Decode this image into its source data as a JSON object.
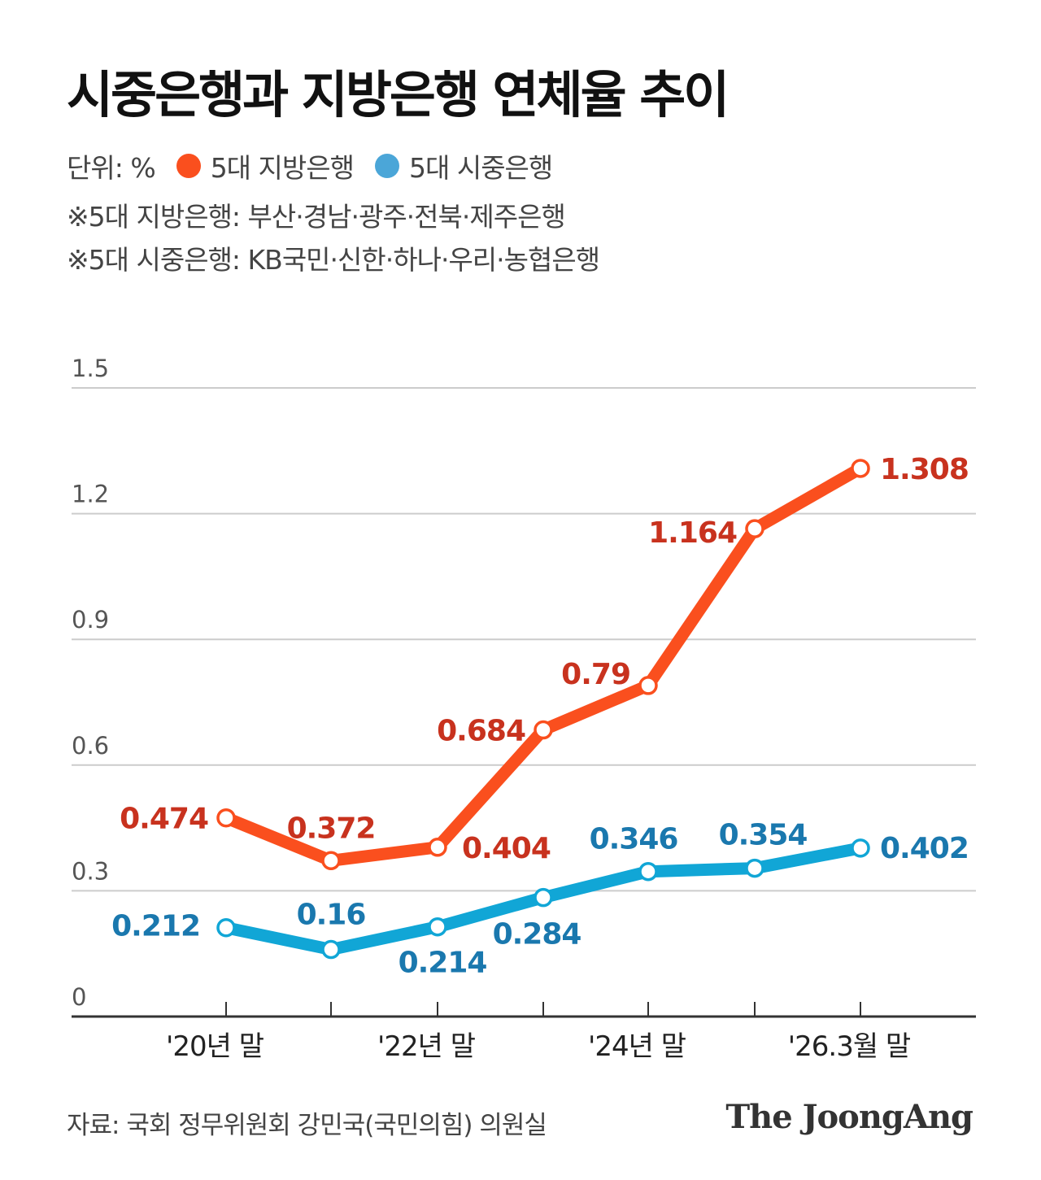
{
  "title": "시중은행과 지방은행 연체율 추이",
  "unit_label": "단위: %",
  "notes": [
    "※5대 지방은행:  부산·경남·광주·전북·제주은행",
    "※5대 시중은행:  KB국민·신한·하나·우리·농협은행"
  ],
  "source": "자료: 국회 정무위원회 강민국(국민의힘) 의원실",
  "brand": "The JoongAng",
  "colors": {
    "regional": "#fa4f1e",
    "regional_label": "#c8321e",
    "commercial": "#11a6d6",
    "commercial_label": "#1a78ae",
    "legend_commercial": "#4ba6d8",
    "grid": "#cccccc",
    "axis": "#333333"
  },
  "chart_data": {
    "type": "line",
    "x": [
      "'20년 말",
      "",
      "'22년 말",
      "",
      "'24년 말",
      "",
      "'26.3월 말"
    ],
    "tick_labels": [
      "'20년 말",
      "'22년 말",
      "'24년 말",
      "'26.3월 말"
    ],
    "y_ticks": [
      "0",
      "0.3",
      "0.6",
      "0.9",
      "1.2",
      "1.5"
    ],
    "ylim": [
      0,
      1.5
    ],
    "grid": true,
    "legend_position": "top-left",
    "series": [
      {
        "name": "5대 지방은행",
        "values": [
          0.474,
          0.372,
          0.404,
          0.684,
          0.79,
          1.164,
          1.308
        ],
        "labels": [
          "0.474",
          "0.372",
          "0.404",
          "0.684",
          "0.79",
          "1.164",
          "1.308"
        ]
      },
      {
        "name": "5대 시중은행",
        "values": [
          0.212,
          0.16,
          0.214,
          0.284,
          0.346,
          0.354,
          0.402
        ],
        "labels": [
          "0.212",
          "0.16",
          "0.214",
          "0.284",
          "0.346",
          "0.354",
          "0.402"
        ]
      }
    ]
  }
}
